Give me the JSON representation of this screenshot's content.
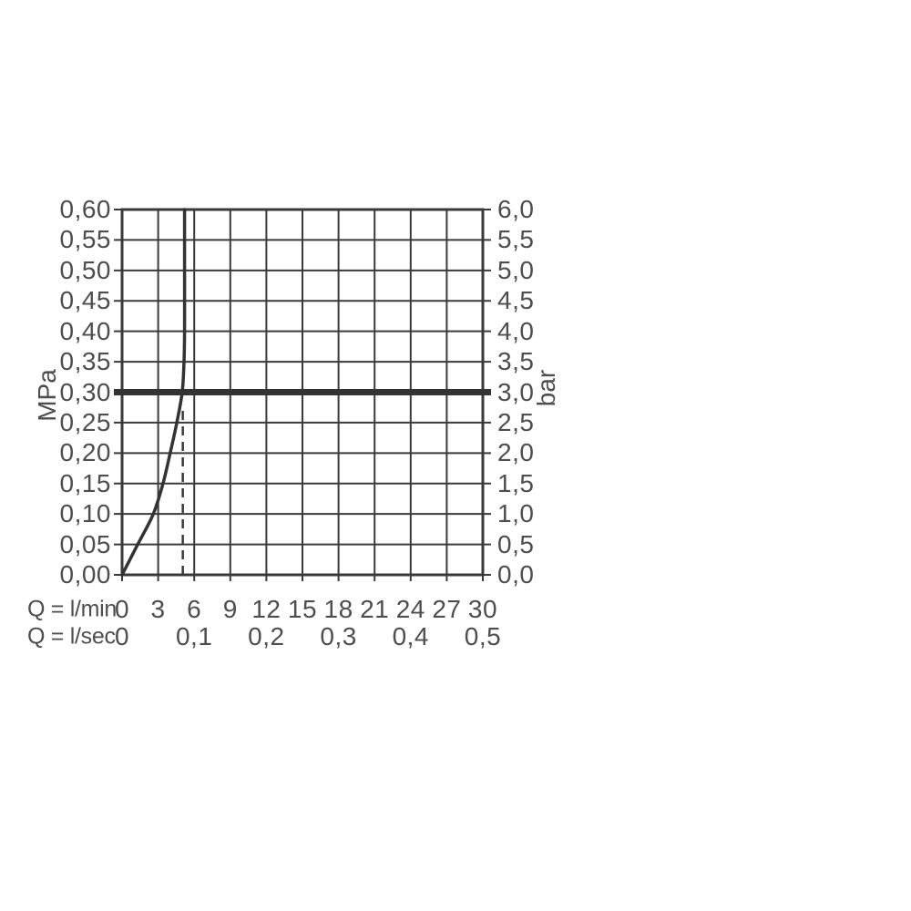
{
  "colors": {
    "line": "#3a3a3a",
    "curve": "#333333",
    "thick_line": "#333333",
    "text": "#4e4e50",
    "background": "#ffffff"
  },
  "chart_data": {
    "type": "line",
    "grid": true,
    "xlim_lmin": [
      0,
      30
    ],
    "ylim_mpa": [
      0,
      0.6
    ],
    "y_axis_left": {
      "unit": "MPa",
      "values": [
        0.6,
        0.55,
        0.5,
        0.45,
        0.4,
        0.35,
        0.3,
        0.25,
        0.2,
        0.15,
        0.1,
        0.05,
        0.0
      ],
      "ticks": [
        "0,60",
        "0,55",
        "0,50",
        "0,45",
        "0,40",
        "0,35",
        "0,30",
        "0,25",
        "0,20",
        "0,15",
        "0,10",
        "0,05",
        "0,00"
      ]
    },
    "y_axis_right": {
      "unit": "bar",
      "values": [
        6.0,
        5.5,
        5.0,
        4.5,
        4.0,
        3.5,
        3.0,
        2.5,
        2.0,
        1.5,
        1.0,
        0.5,
        0.0
      ],
      "ticks": [
        "6,0",
        "5,5",
        "5,0",
        "4,5",
        "4,0",
        "3,5",
        "3,0",
        "2,5",
        "2,0",
        "1,5",
        "1,0",
        "0,5",
        "0,0"
      ]
    },
    "x_axis_lmin": {
      "label": "Q = l/min",
      "values": [
        0,
        3,
        6,
        9,
        12,
        15,
        18,
        21,
        24,
        27,
        30
      ],
      "ticks": [
        "0",
        "3",
        "6",
        "9",
        "12",
        "15",
        "18",
        "21",
        "24",
        "27",
        "30"
      ]
    },
    "x_axis_lsec": {
      "label": "Q = l/sec",
      "ticks": [
        {
          "label": "0",
          "lmin": 0
        },
        {
          "label": "0,1",
          "lmin": 6
        },
        {
          "label": "0,2",
          "lmin": 12
        },
        {
          "label": "0,3",
          "lmin": 18
        },
        {
          "label": "0,4",
          "lmin": 24
        },
        {
          "label": "0,5",
          "lmin": 30
        }
      ]
    },
    "series": [
      {
        "name": "flow-pressure-curve",
        "type": "curve",
        "points_lmin_mpa": [
          [
            0,
            0
          ],
          [
            0.65,
            0.025
          ],
          [
            1.3,
            0.05
          ],
          [
            2.6,
            0.1
          ],
          [
            3.4,
            0.15
          ],
          [
            4.0,
            0.2
          ],
          [
            4.55,
            0.25
          ],
          [
            5.0,
            0.3
          ],
          [
            5.15,
            0.35
          ],
          [
            5.2,
            0.4
          ],
          [
            5.2,
            0.5
          ],
          [
            5.2,
            0.6
          ]
        ]
      },
      {
        "name": "reference-pressure-line",
        "type": "horizontal-line",
        "mpa": 0.3,
        "bar": 3.0
      },
      {
        "name": "flow-marker-dashed-line",
        "type": "vertical-dashed-line",
        "lmin": 5.05,
        "from_mpa": 0,
        "to_mpa": 0.28
      }
    ]
  }
}
